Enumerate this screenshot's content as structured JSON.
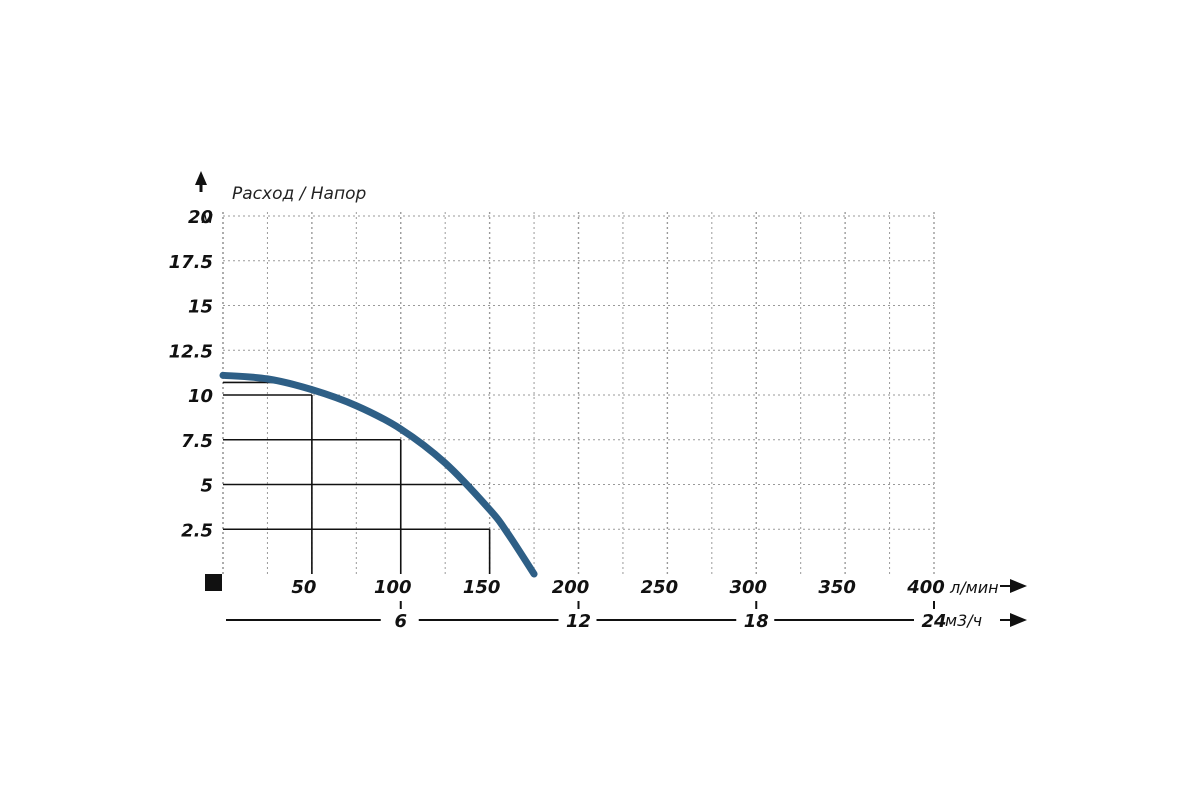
{
  "chart_data": {
    "type": "line",
    "title": "Расход / Напор",
    "y_unit": "м",
    "x_unit": "л/мин",
    "x2_unit": "м3/ч",
    "ylim": [
      0,
      20
    ],
    "xlim": [
      0,
      400
    ],
    "y_ticks": [
      "2.5",
      "5",
      "7.5",
      "10",
      "12.5",
      "15",
      "17.5",
      "20"
    ],
    "x_ticks": [
      "50",
      "100",
      "150",
      "200",
      "250",
      "300",
      "350",
      "400"
    ],
    "x2_ticks": [
      "6",
      "12",
      "18",
      "24"
    ],
    "grid": true,
    "series": [
      {
        "color": "#2e5f86",
        "x": [
          0,
          25,
          50,
          75,
          100,
          125,
          150,
          160,
          175
        ],
        "y": [
          11.1,
          10.9,
          10.3,
          9.4,
          8.1,
          6.2,
          3.6,
          2.3,
          0
        ]
      }
    ],
    "reference_points": [
      {
        "x": 50,
        "y": 10
      },
      {
        "x": 100,
        "y": 7.5
      },
      {
        "x": 150,
        "y": 2.5
      }
    ]
  }
}
